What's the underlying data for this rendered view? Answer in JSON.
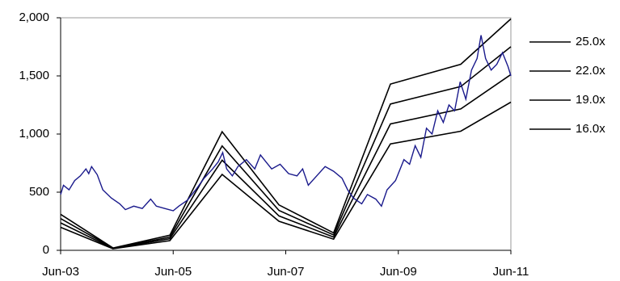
{
  "chart_data": {
    "type": "line",
    "xlim": [
      2003.5,
      2011.5
    ],
    "xticks": [
      {
        "value": 2003.5,
        "label": "Jun-03"
      },
      {
        "value": 2005.5,
        "label": "Jun-05"
      },
      {
        "value": 2007.5,
        "label": "Jun-07"
      },
      {
        "value": 2009.5,
        "label": "Jun-09"
      },
      {
        "value": 2011.5,
        "label": "Jun-11"
      }
    ],
    "ylim": [
      0,
      2000
    ],
    "yticks": [
      0,
      500,
      {
        "value": 1000,
        "label": "1,000"
      },
      {
        "value": 1500,
        "label": "1,500"
      },
      {
        "value": 2000,
        "label": "2,000"
      }
    ],
    "series": [
      {
        "name": "25.0x",
        "color": "#000000",
        "x": [
          2003.5,
          2004.43,
          2005.44,
          2006.37,
          2007.38,
          2008.35,
          2009.36,
          2010.61,
          2011.5
        ],
        "values": [
          310,
          20,
          130,
          1020,
          390,
          150,
          1430,
          1600,
          1990
        ]
      },
      {
        "name": "22.0x",
        "color": "#000000",
        "x": [
          2003.5,
          2004.43,
          2005.44,
          2006.37,
          2007.38,
          2008.35,
          2009.36,
          2010.61,
          2011.5
        ],
        "values": [
          273,
          18,
          114,
          898,
          343,
          132,
          1258,
          1408,
          1751
        ]
      },
      {
        "name": "19.0x",
        "color": "#000000",
        "x": [
          2003.5,
          2004.43,
          2005.44,
          2006.37,
          2007.38,
          2008.35,
          2009.36,
          2010.61,
          2011.5
        ],
        "values": [
          236,
          15,
          99,
          775,
          296,
          114,
          1087,
          1216,
          1512
        ]
      },
      {
        "name": "16.0x",
        "color": "#000000",
        "x": [
          2003.5,
          2004.43,
          2005.44,
          2006.37,
          2007.38,
          2008.35,
          2009.36,
          2010.61,
          2011.5
        ],
        "values": [
          198,
          13,
          83,
          653,
          250,
          96,
          915,
          1024,
          1274
        ]
      },
      {
        "color": "#1a1a8c",
        "x": [
          2003.5,
          2003.55,
          2003.65,
          2003.75,
          2003.85,
          2003.95,
          2004.0,
          2004.05,
          2004.15,
          2004.25,
          2004.4,
          2004.55,
          2004.65,
          2004.8,
          2004.95,
          2005.1,
          2005.2,
          2005.35,
          2005.5,
          2005.6,
          2005.75,
          2005.9,
          2006.05,
          2006.2,
          2006.3,
          2006.38,
          2006.45,
          2006.55,
          2006.65,
          2006.8,
          2006.95,
          2007.05,
          2007.15,
          2007.25,
          2007.4,
          2007.55,
          2007.7,
          2007.8,
          2007.9,
          2008.05,
          2008.2,
          2008.35,
          2008.5,
          2008.6,
          2008.7,
          2008.85,
          2008.95,
          2009.1,
          2009.2,
          2009.3,
          2009.45,
          2009.6,
          2009.7,
          2009.8,
          2009.9,
          2010.0,
          2010.1,
          2010.2,
          2010.3,
          2010.4,
          2010.5,
          2010.6,
          2010.7,
          2010.8,
          2010.9,
          2010.97,
          2011.05,
          2011.15,
          2011.25,
          2011.35,
          2011.45,
          2011.5
        ],
        "values": [
          480,
          560,
          520,
          600,
          640,
          700,
          660,
          720,
          650,
          520,
          450,
          400,
          350,
          380,
          360,
          440,
          380,
          360,
          340,
          380,
          430,
          520,
          620,
          700,
          760,
          840,
          700,
          640,
          720,
          780,
          700,
          820,
          760,
          700,
          740,
          660,
          640,
          700,
          560,
          640,
          720,
          680,
          620,
          520,
          450,
          400,
          480,
          440,
          380,
          520,
          600,
          780,
          740,
          900,
          800,
          1050,
          1000,
          1200,
          1100,
          1250,
          1200,
          1450,
          1300,
          1550,
          1650,
          1850,
          1650,
          1550,
          1600,
          1700,
          1580,
          1500
        ]
      }
    ]
  }
}
